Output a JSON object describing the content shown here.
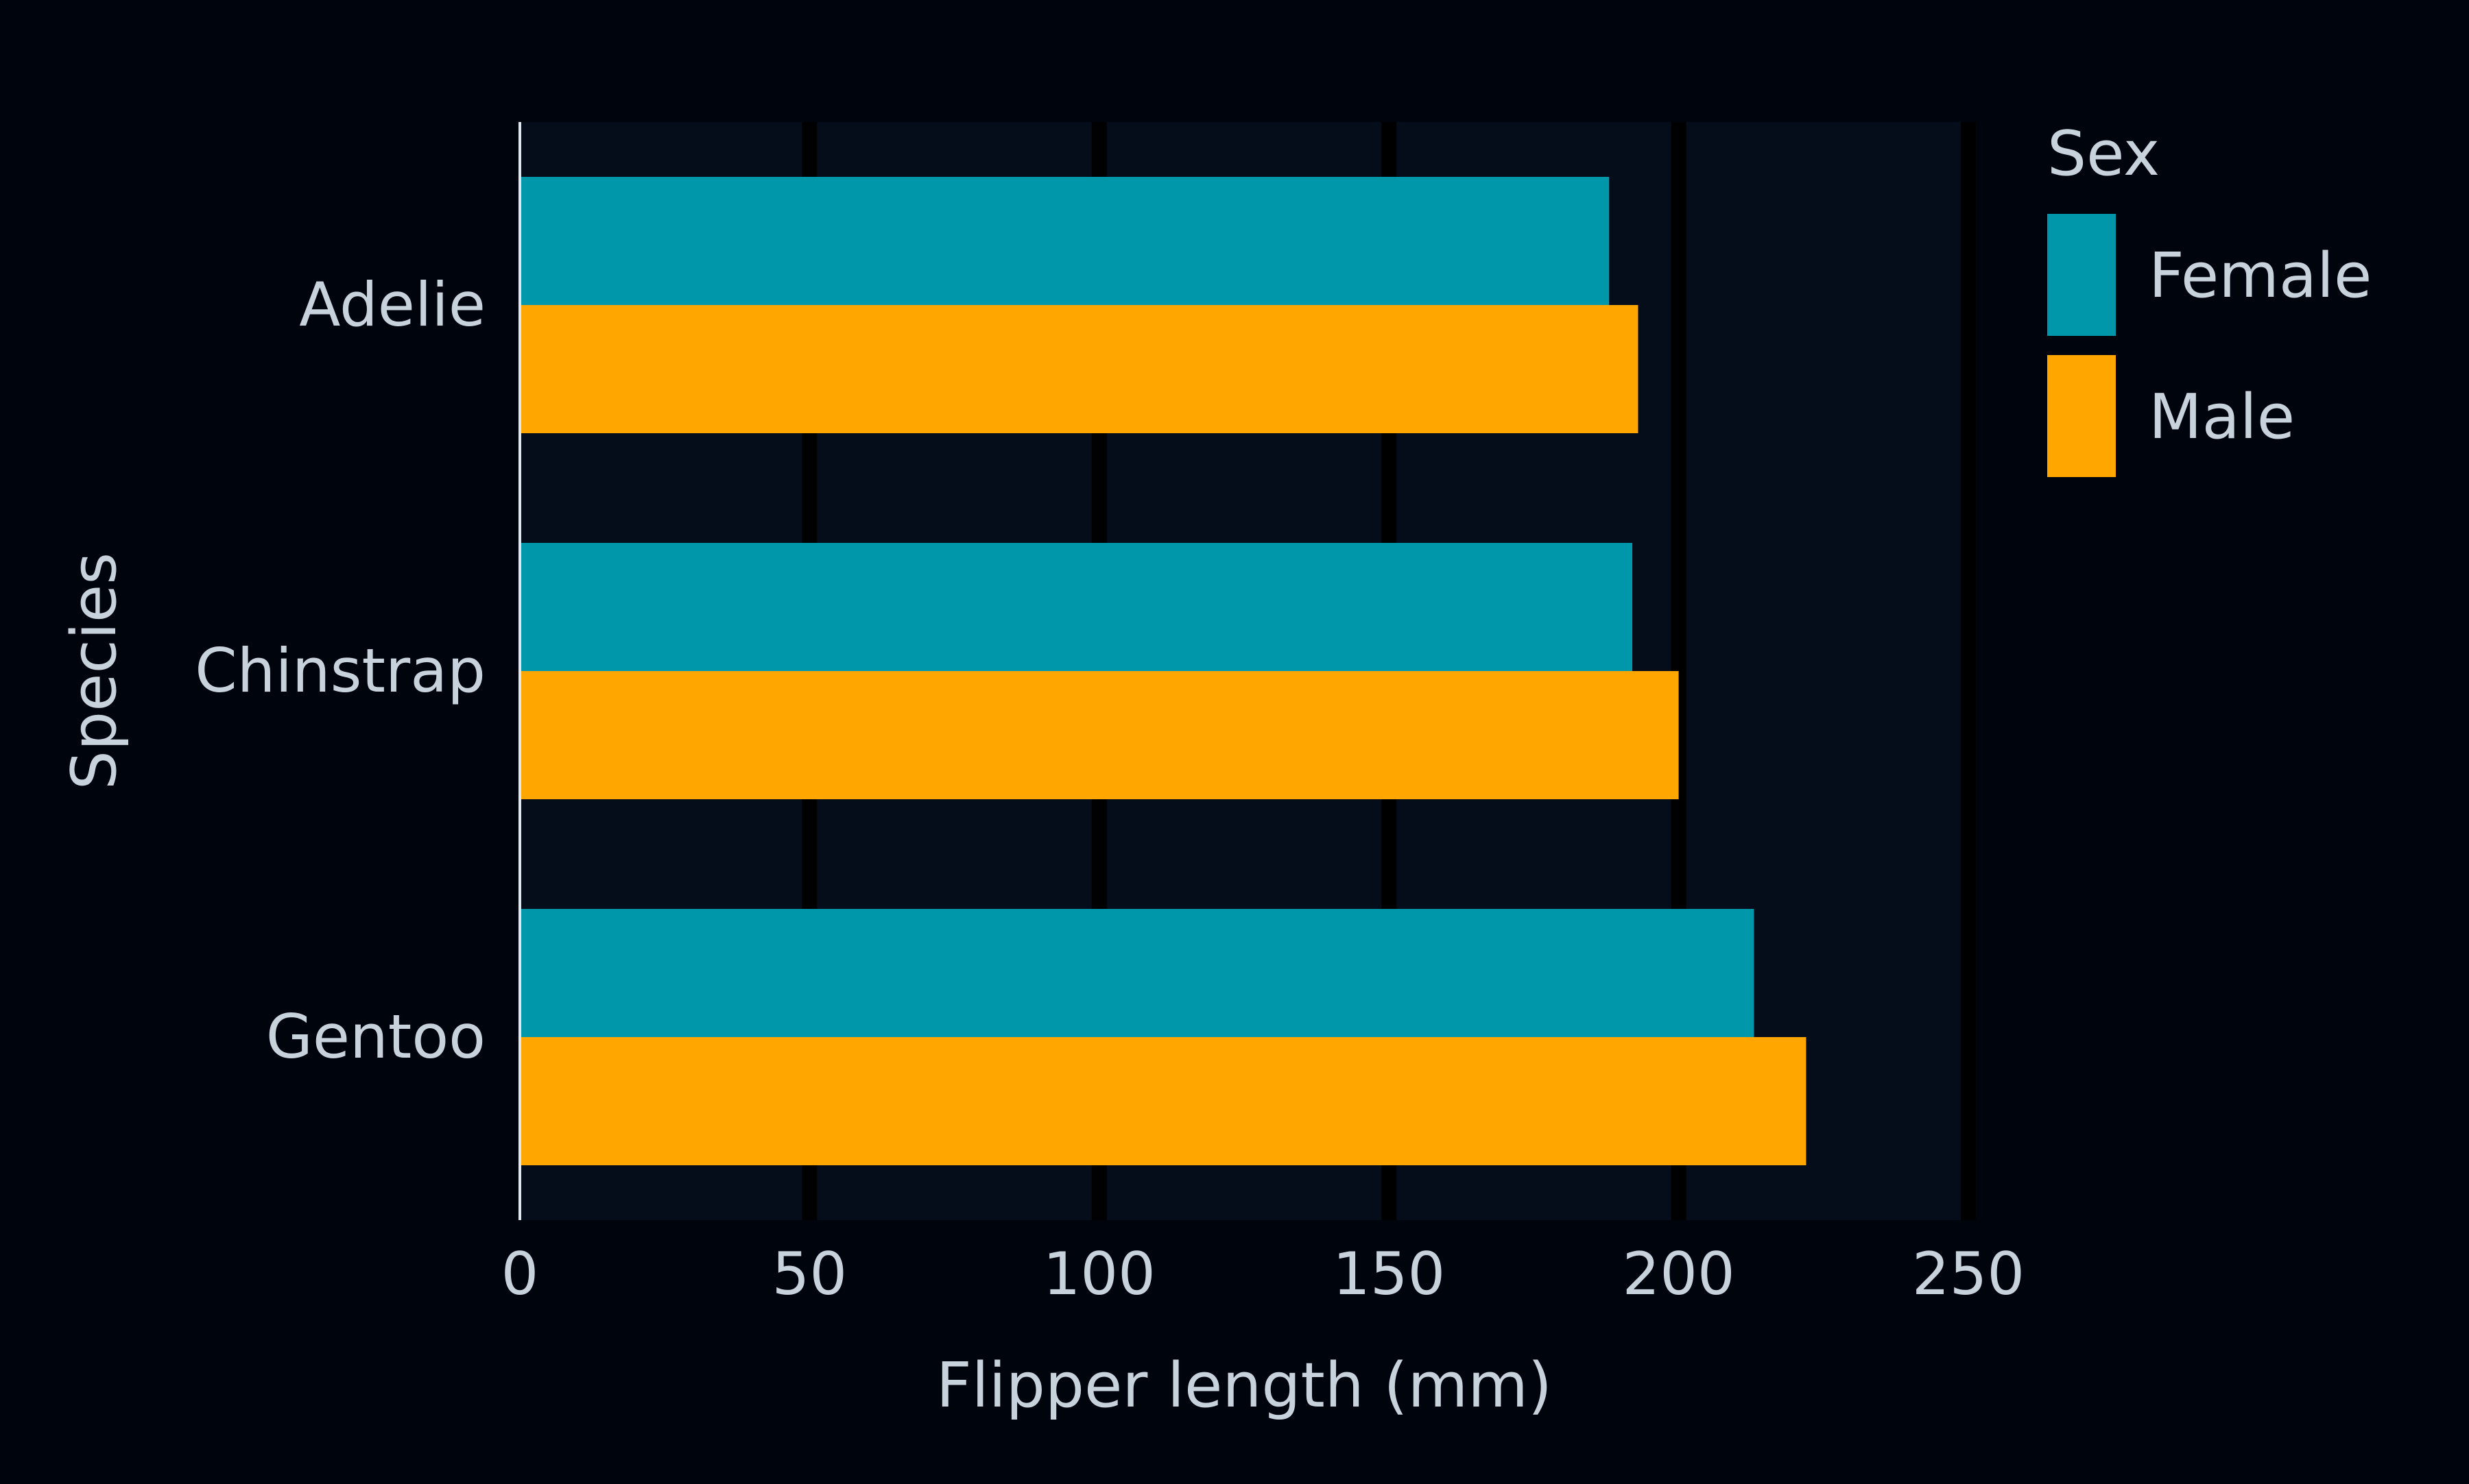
{
  "colors": {
    "page_background": "#00040c",
    "plot_background": "#060d1a",
    "grid": "#000000",
    "text": "#c8d2dc",
    "axis_line": "#dfe6ee"
  },
  "chart_data": {
    "type": "bar",
    "orientation": "horizontal",
    "title": "",
    "xlabel": "Flipper length (mm)",
    "ylabel": "Species",
    "xlim": [
      0,
      250
    ],
    "xticks": [
      "0",
      "50",
      "100",
      "150",
      "200",
      "250"
    ],
    "categories": [
      "Adelie",
      "Chinstrap",
      "Gentoo"
    ],
    "grid": true,
    "legend": {
      "title": "Sex",
      "placement": "right-top"
    },
    "series": [
      {
        "name": "Female",
        "color": "#0097aa",
        "values": [
          188,
          192,
          213
        ]
      },
      {
        "name": "Male",
        "color": "#ffa600",
        "values": [
          193,
          200,
          222
        ]
      }
    ]
  }
}
